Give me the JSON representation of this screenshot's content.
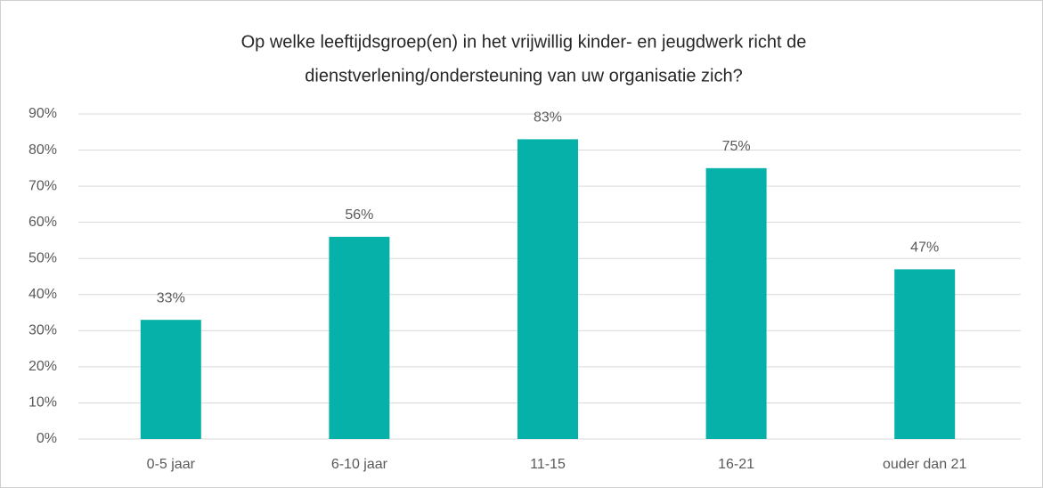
{
  "chart_data": {
    "type": "bar",
    "title": [
      "Op welke leeftijdsgroep(en) in het vrijwillig kinder- en jeugdwerk richt de",
      "dienstverlening/ondersteuning van uw organisatie zich?"
    ],
    "categories": [
      "0-5 jaar",
      "6-10 jaar",
      "11-15",
      "16-21",
      "ouder dan 21"
    ],
    "values": [
      33,
      56,
      83,
      75,
      47
    ],
    "value_labels": [
      "33%",
      "56%",
      "83%",
      "75%",
      "47%"
    ],
    "color": "#06b1aa",
    "ylim": [
      0,
      90
    ],
    "yticks": [
      {
        "value": 0,
        "label": "0%"
      },
      {
        "value": 10,
        "label": "10%"
      },
      {
        "value": 20,
        "label": "20%"
      },
      {
        "value": 30,
        "label": "30%"
      },
      {
        "value": 40,
        "label": "40%"
      },
      {
        "value": 50,
        "label": "50%"
      },
      {
        "value": 60,
        "label": "60%"
      },
      {
        "value": 70,
        "label": "70%"
      },
      {
        "value": 80,
        "label": "80%"
      },
      {
        "value": 90,
        "label": "90%"
      }
    ],
    "grid": true
  }
}
